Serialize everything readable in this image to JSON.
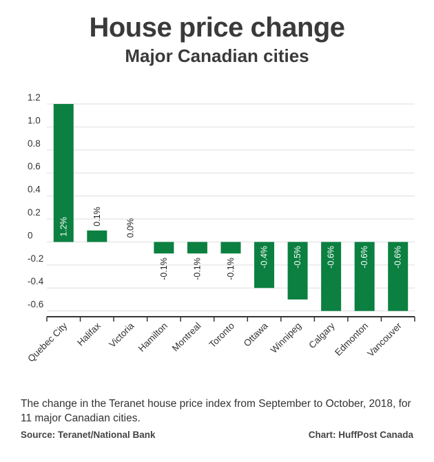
{
  "header": {
    "title": "House price change",
    "subtitle": "Major Canadian cities"
  },
  "chart_data": {
    "type": "bar",
    "title": "House price change",
    "subtitle": "Major Canadian cities",
    "xlabel": "",
    "ylabel": "",
    "categories": [
      "Quebec City",
      "Halifax",
      "Victoria",
      "Hamilton",
      "Montreal",
      "Toronto",
      "Ottawa",
      "Winnipeg",
      "Calgary",
      "Edmonton",
      "Vancouver"
    ],
    "values": [
      1.2,
      0.1,
      0.0,
      -0.1,
      -0.1,
      -0.1,
      -0.4,
      -0.5,
      -0.6,
      -0.6,
      -0.6
    ],
    "data_labels": [
      "1.2%",
      "0.1%",
      "0.0%",
      "-0.1%",
      "-0.1%",
      "-0.1%",
      "-0.4%",
      "-0.5%",
      "-0.6%",
      "-0.6%",
      "-0.6%"
    ],
    "yticks": [
      1.2,
      1.0,
      0.8,
      0.6,
      0.4,
      0.2,
      0,
      -0.2,
      -0.4,
      -0.6
    ],
    "ytick_labels": [
      "1.2",
      "1.0",
      "0.8",
      "0.6",
      "0.4",
      "0.2",
      "0",
      "-0.2",
      "-0.4",
      "-0.6"
    ],
    "ylim": [
      -0.65,
      1.2
    ],
    "grid": true,
    "bar_color": "#0b8040",
    "grid_color": "#dddddd",
    "axis_color": "#333333"
  },
  "footer": {
    "caption": "The change in the Teranet house price index from September to October, 2018, for 11 major Canadian cities.",
    "source": "Source: Teranet/National Bank",
    "credit": "Chart: HuffPost Canada"
  }
}
